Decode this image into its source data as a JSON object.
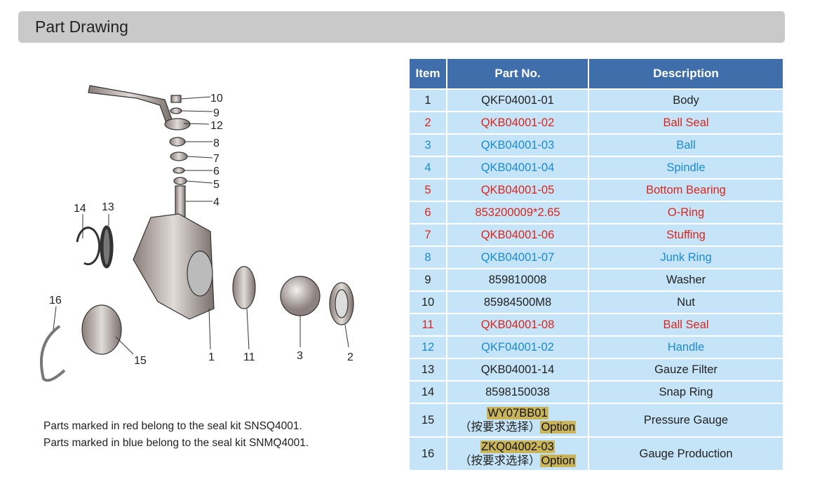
{
  "header": {
    "title": "Part Drawing"
  },
  "notes": [
    "Parts marked in red  belong to the seal kit SNSQ4001.",
    "Parts marked in blue  belong to the seal kit SNMQ4001."
  ],
  "table": {
    "headers": [
      "Item",
      "Part No.",
      "Description"
    ],
    "rows": [
      {
        "item": "1",
        "part": "QKF04001-01",
        "desc": "Body",
        "color": "black"
      },
      {
        "item": "2",
        "part": "QKB04001-02",
        "desc": "Ball Seal",
        "color": "red"
      },
      {
        "item": "3",
        "part": "QKB04001-03",
        "desc": "Ball",
        "color": "blue"
      },
      {
        "item": "4",
        "part": "QKB04001-04",
        "desc": "Spindle",
        "color": "blue"
      },
      {
        "item": "5",
        "part": "QKB04001-05",
        "desc": "Bottom Bearing",
        "color": "red"
      },
      {
        "item": "6",
        "part": "853200009*2.65",
        "desc": "O-Ring",
        "color": "red"
      },
      {
        "item": "7",
        "part": "QKB04001-06",
        "desc": "Stuffing",
        "color": "red"
      },
      {
        "item": "8",
        "part": "QKB04001-07",
        "desc": "Junk Ring",
        "color": "blue"
      },
      {
        "item": "9",
        "part": "859810008",
        "desc": "Washer",
        "color": "black"
      },
      {
        "item": "10",
        "part": "85984500M8",
        "desc": "Nut",
        "color": "black"
      },
      {
        "item": "11",
        "part": "QKB04001-08",
        "desc": "Ball Seal",
        "color": "red"
      },
      {
        "item": "12",
        "part": "QKF04001-02",
        "desc": "Handle",
        "color": "blue"
      },
      {
        "item": "13",
        "part": "QKB04001-14",
        "desc": "Gauze Filter",
        "color": "black"
      },
      {
        "item": "14",
        "part": "8598150038",
        "desc": "Snap Ring",
        "color": "black"
      }
    ],
    "option_rows": [
      {
        "item": "15",
        "part": "WY07BB01",
        "note": "（按要求选择）",
        "option": "Option",
        "desc": "Pressure Gauge"
      },
      {
        "item": "16",
        "part": "ZKQ04002-03",
        "note": "（按要求选择）",
        "option": "Option",
        "desc": "Gauge Production"
      }
    ]
  },
  "diagram_labels": [
    "10",
    "9",
    "12",
    "8",
    "7",
    "6",
    "5",
    "4",
    "14",
    "13",
    "16",
    "15",
    "1",
    "11",
    "3",
    "2"
  ]
}
